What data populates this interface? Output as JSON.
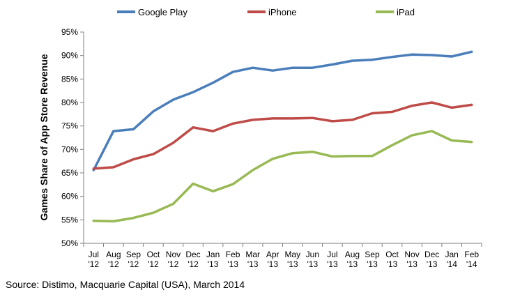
{
  "chart_data": {
    "type": "line",
    "title": "",
    "xlabel": "",
    "ylabel": "Games Share of App Store Revenue",
    "categories": [
      [
        "Jul",
        "'12"
      ],
      [
        "Aug",
        "'12"
      ],
      [
        "Sep",
        "'12"
      ],
      [
        "Oct",
        "'12"
      ],
      [
        "Nov",
        "'12"
      ],
      [
        "Dec",
        "'12"
      ],
      [
        "Jan",
        "'13"
      ],
      [
        "Feb",
        "'13"
      ],
      [
        "Mar",
        "'13"
      ],
      [
        "Apr",
        "'13"
      ],
      [
        "May",
        "'13"
      ],
      [
        "Jun",
        "'13"
      ],
      [
        "Jul",
        "'13"
      ],
      [
        "Aug",
        "'13"
      ],
      [
        "Sep",
        "'13"
      ],
      [
        "Oct",
        "'13"
      ],
      [
        "Nov",
        "'13"
      ],
      [
        "Dec",
        "'13"
      ],
      [
        "Jan",
        "'14"
      ],
      [
        "Feb",
        "'14"
      ]
    ],
    "ylim": [
      50,
      95
    ],
    "yticks": [
      50,
      55,
      60,
      65,
      70,
      75,
      80,
      85,
      90,
      95
    ],
    "ytick_labels": [
      "50%",
      "55%",
      "60%",
      "65%",
      "70%",
      "75%",
      "80%",
      "85%",
      "90%",
      "95%"
    ],
    "legend_position": "top",
    "grid": false,
    "series": [
      {
        "name": "Google Play",
        "color": "#4a7ebb",
        "values": [
          65.6,
          73.9,
          74.3,
          78.1,
          80.6,
          82.2,
          84.2,
          86.5,
          87.4,
          86.8,
          87.4,
          87.4,
          88.1,
          88.9,
          89.1,
          89.7,
          90.2,
          90.1,
          89.8,
          90.8
        ]
      },
      {
        "name": "iPhone",
        "color": "#be4b48",
        "values": [
          65.9,
          66.2,
          67.9,
          69.0,
          71.4,
          74.7,
          73.9,
          75.5,
          76.3,
          76.6,
          76.6,
          76.7,
          76.0,
          76.3,
          77.7,
          78.0,
          79.3,
          80.0,
          78.9,
          79.5
        ]
      },
      {
        "name": "iPad",
        "color": "#98b954",
        "values": [
          54.8,
          54.7,
          55.4,
          56.5,
          58.4,
          62.7,
          61.1,
          62.6,
          65.6,
          68.0,
          69.2,
          69.5,
          68.5,
          68.6,
          68.6,
          70.9,
          73.0,
          73.9,
          71.9,
          71.6
        ]
      }
    ]
  },
  "footer": {
    "source": "Source: Distimo, Macquarie Capital (USA), March 2014"
  }
}
